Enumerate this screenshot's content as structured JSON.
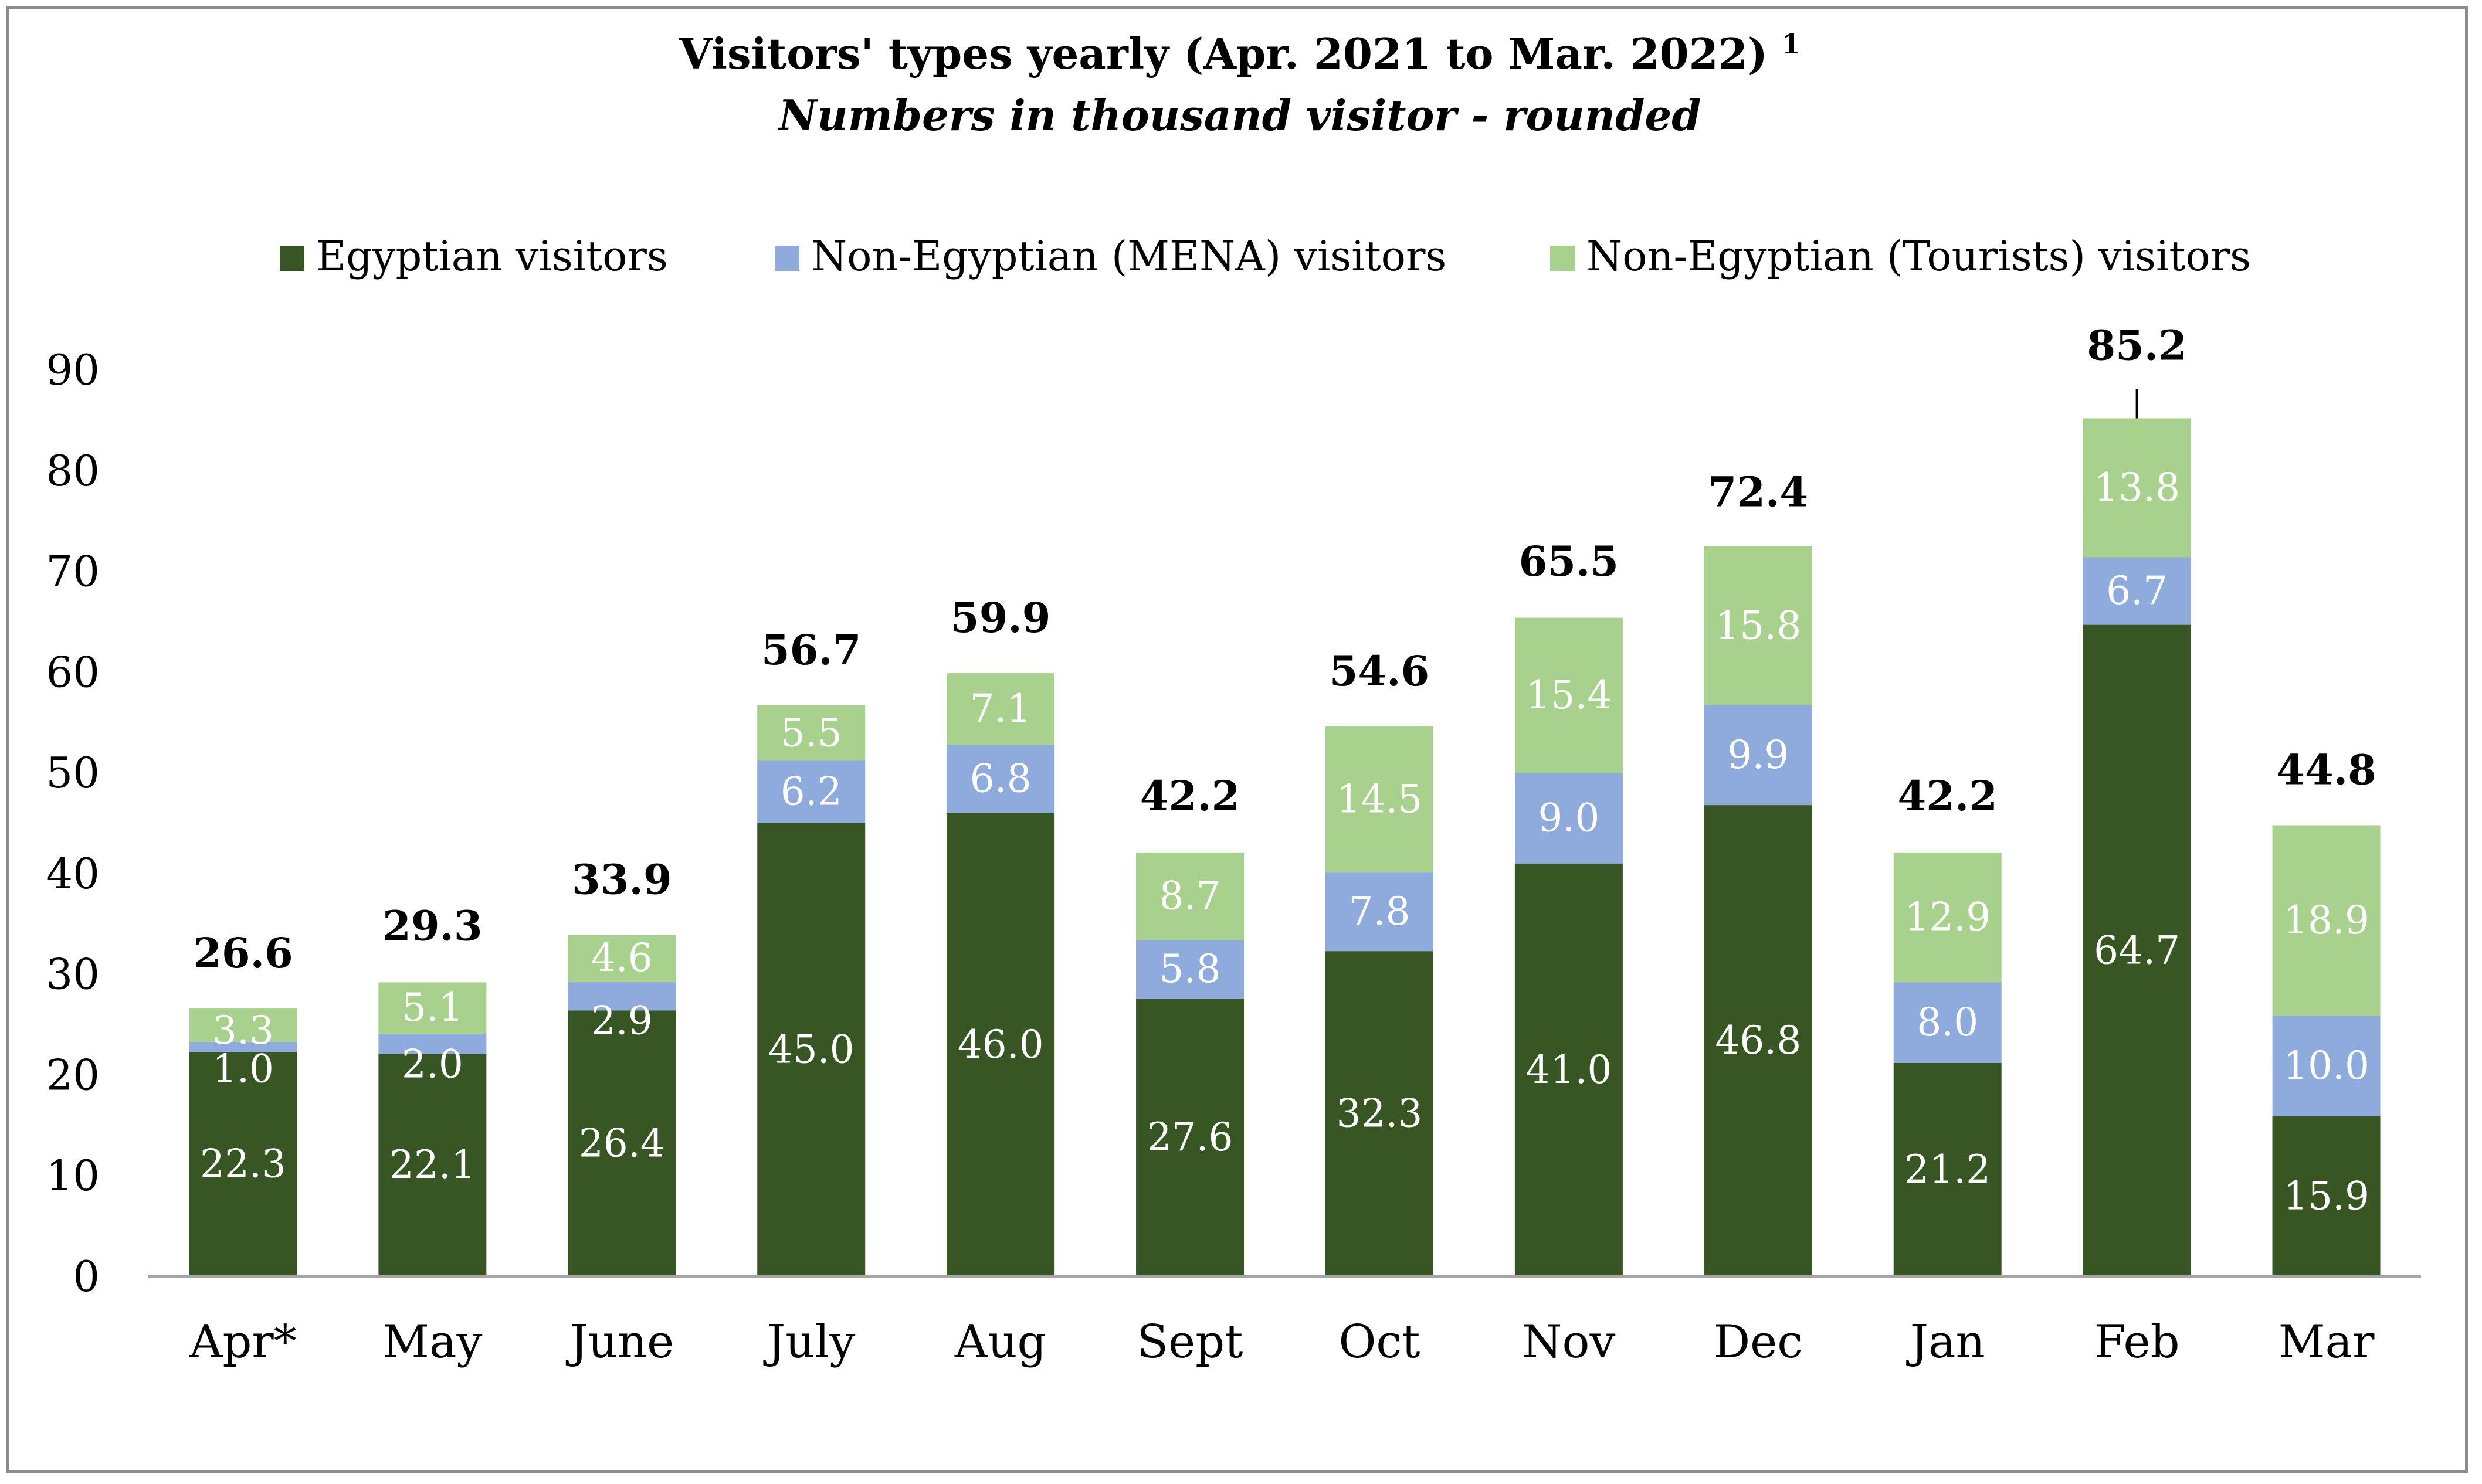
{
  "chart_data": {
    "type": "bar",
    "stacked": true,
    "title": "Visitors' types  yearly (Apr. 2021 to Mar. 2022)",
    "title_superscript": "1",
    "subtitle": "Numbers in thousand visitor - rounded",
    "legend_position": "top",
    "categories": [
      "Apr*",
      "May",
      "June",
      "July",
      "Aug",
      "Sept",
      "Oct",
      "Nov",
      "Dec",
      "Jan",
      "Feb",
      "Mar"
    ],
    "series": [
      {
        "name": "Egyptian visitors",
        "color": "#375623",
        "values": [
          22.3,
          22.1,
          26.4,
          45.0,
          46.0,
          27.6,
          32.3,
          41.0,
          46.8,
          21.2,
          64.7,
          15.9
        ],
        "labels": [
          "22.3",
          "22.1",
          "26.4",
          "45.0",
          "46.0",
          "27.6",
          "32.3",
          "41.0",
          "46.8",
          "21.2",
          "64.7",
          "15.9"
        ]
      },
      {
        "name": "Non-Egyptian (MENA) visitors",
        "color": "#8faadc",
        "values": [
          1.0,
          2.0,
          2.9,
          6.2,
          6.8,
          5.8,
          7.8,
          9.0,
          9.9,
          8.0,
          6.7,
          10.0
        ],
        "labels": [
          "1.0",
          "2.0",
          "2.9",
          "6.2",
          "6.8",
          "5.8",
          "7.8",
          "9.0",
          "9.9",
          "8.0",
          "6.7",
          "10.0"
        ]
      },
      {
        "name": "Non-Egyptian (Tourists) visitors",
        "color": "#a9d18e",
        "values": [
          3.3,
          5.1,
          4.6,
          5.5,
          7.1,
          8.7,
          14.5,
          15.4,
          15.8,
          12.9,
          13.8,
          18.9
        ],
        "labels": [
          "3.3",
          "5.1",
          "4.6",
          "5.5",
          "7.1",
          "8.7",
          "14.5",
          "15.4",
          "15.8",
          "12.9",
          "13.8",
          "18.9"
        ]
      }
    ],
    "totals": [
      26.6,
      29.3,
      33.9,
      56.7,
      59.9,
      42.2,
      54.6,
      65.5,
      72.4,
      42.2,
      85.2,
      44.8
    ],
    "total_labels": [
      "26.6",
      "29.3",
      "33.9",
      "56.7",
      "59.9",
      "42.2",
      "54.6",
      "65.5",
      "72.4",
      "42.2",
      "85.2",
      "44.8"
    ],
    "ylim": [
      0,
      90
    ],
    "yticks": [
      0,
      10,
      20,
      30,
      40,
      50,
      60,
      70,
      80,
      90
    ],
    "xlabel": "",
    "ylabel": "",
    "grid": false
  }
}
